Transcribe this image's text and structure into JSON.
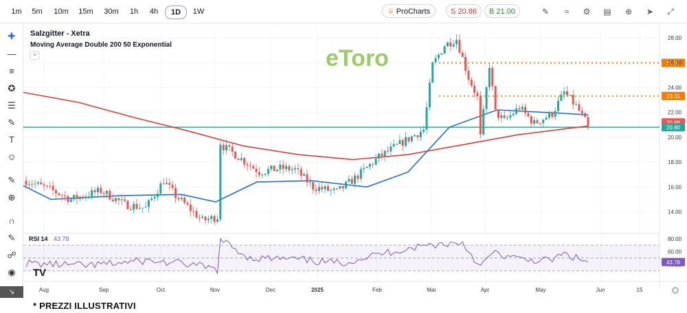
{
  "toolbar": {
    "timeframes": [
      "1m",
      "5m",
      "10m",
      "15m",
      "30m",
      "1h",
      "4h",
      "1D",
      "1W"
    ],
    "active_timeframe": "1D",
    "prochart_label": "ProCharts",
    "sell_label": "S 20.86",
    "buy_label": "B 21.00"
  },
  "footer_note": "* PREZZI ILLUSTRATIVI",
  "brand": "eToro",
  "colors": {
    "up": "#26a69a",
    "down": "#ef5350",
    "ma200": "#e53935",
    "ma50": "#1e6fd9",
    "support_line": "#26a69a",
    "resistance": "#f57c00",
    "rsi": "#7e57c2"
  },
  "chart_data": {
    "type": "candlestick",
    "title": "Salzgitter - Xetra",
    "indicator_label": "Moving Average Double 200 50 Exponential",
    "x_ticks": [
      "Aug",
      "Sep",
      "Oct",
      "Nov",
      "Dec",
      "2025",
      "Feb",
      "Mar",
      "Apr",
      "May",
      "Jun",
      "15"
    ],
    "y_ticks": [
      14.0,
      16.0,
      18.0,
      20.0,
      22.0,
      24.0,
      26.0,
      28.0
    ],
    "ylim": [
      12.6,
      28.6
    ],
    "price_points": [
      {
        "date": "Jul",
        "price": 16.5
      },
      {
        "date": "Aug",
        "price": 15.1
      },
      {
        "date": "Sep",
        "price": 15.6
      },
      {
        "date": "Sep mid",
        "price": 14.1
      },
      {
        "date": "Oct",
        "price": 16.5
      },
      {
        "date": "Oct mid",
        "price": 14.5
      },
      {
        "date": "Oct end",
        "price": 13.2
      },
      {
        "date": "Nov",
        "price": 13.7
      },
      {
        "date": "Nov gap",
        "price": 19.4
      },
      {
        "date": "Dec",
        "price": 17.0
      },
      {
        "date": "Dec end",
        "price": 17.2
      },
      {
        "date": "2025",
        "price": 16.0
      },
      {
        "date": "Jan",
        "price": 15.6
      },
      {
        "date": "Feb",
        "price": 18.5
      },
      {
        "date": "Feb end",
        "price": 20.5
      },
      {
        "date": "Mar",
        "price": 22.0
      },
      {
        "date": "Mar mid",
        "price": 27.8
      },
      {
        "date": "Apr",
        "price": 24.0
      },
      {
        "date": "Apr low",
        "price": 20.0
      },
      {
        "date": "Apr mid",
        "price": 25.8
      },
      {
        "date": "May",
        "price": 21.5
      },
      {
        "date": "May mid",
        "price": 22.5
      },
      {
        "date": "May end",
        "price": 23.5
      },
      {
        "date": "last",
        "price": 20.86
      }
    ],
    "ma200_points": [
      23.6,
      22.8,
      21.6,
      20.5,
      19.3,
      18.6,
      18.2,
      18.6,
      19.4,
      20.2,
      20.9
    ],
    "ma50_points": [
      16.1,
      15.0,
      15.3,
      15.4,
      14.8,
      16.4,
      16.5,
      16.0,
      17.2,
      20.8,
      22.2,
      21.8
    ],
    "horizontal_levels": [
      {
        "value": 25.97,
        "label": "25.97",
        "style": "dotted"
      },
      {
        "value": 23.31,
        "label": "23.31",
        "style": "dotted"
      },
      {
        "value": 20.86,
        "label": "20.86",
        "style": "last-price"
      },
      {
        "value": 20.8,
        "label": "20.80",
        "style": "support"
      }
    ],
    "rsi": {
      "label": "RSI 14",
      "value": 43.78,
      "value_label": "43.78",
      "y_ticks": [
        40.0,
        60.0,
        80.0
      ],
      "ylim": [
        18,
        84
      ],
      "bands": [
        30,
        70
      ]
    }
  }
}
